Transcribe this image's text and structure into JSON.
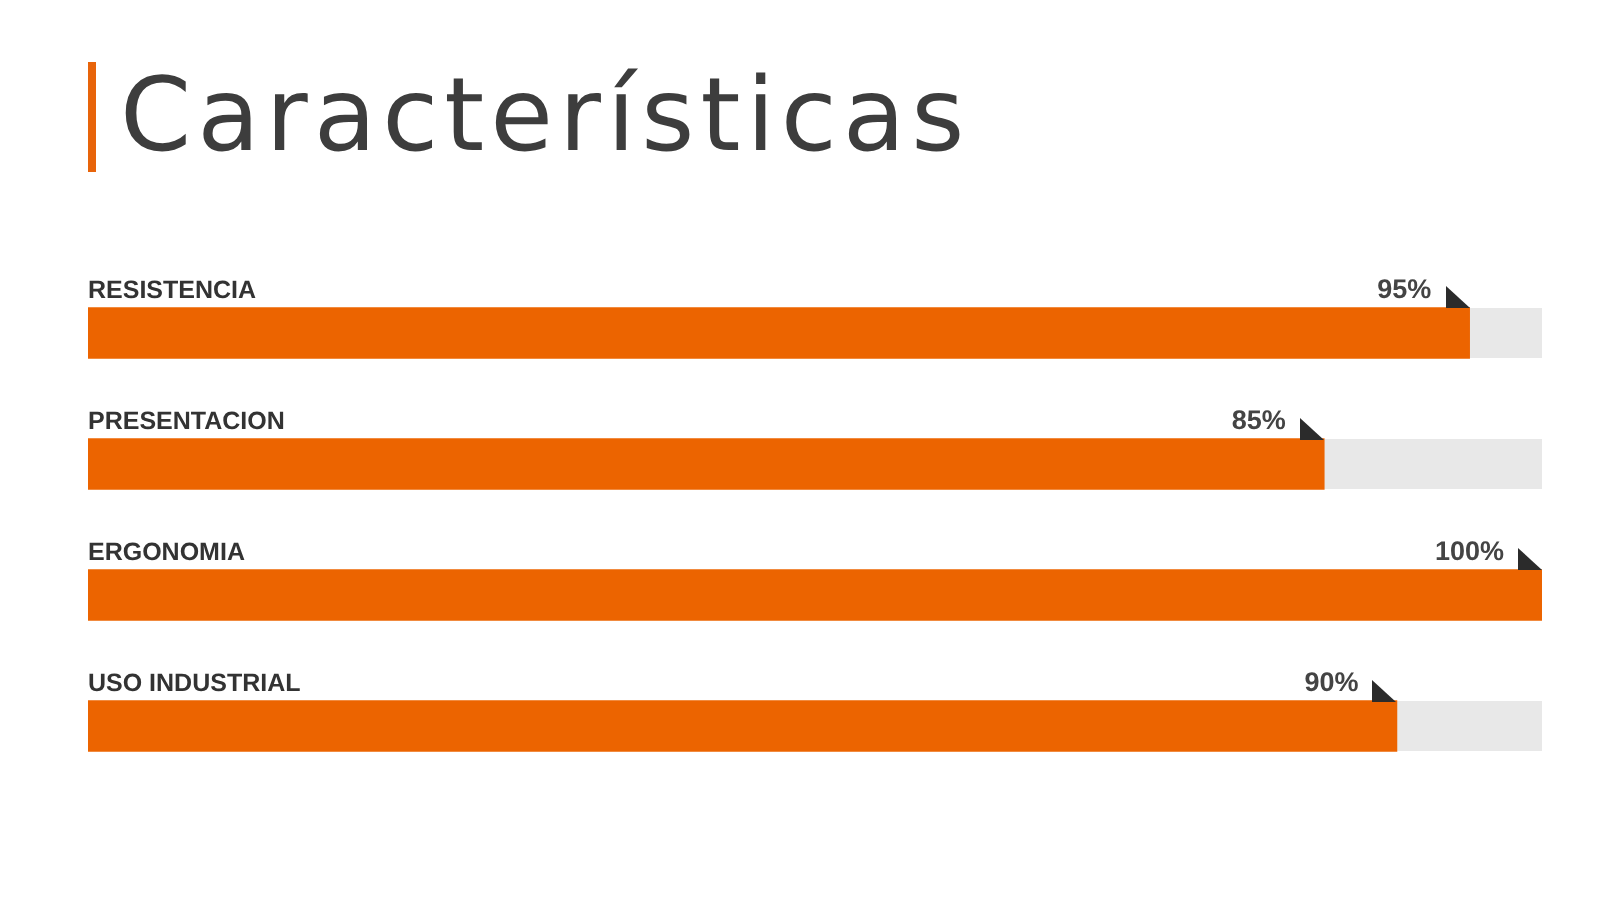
{
  "chart_data": {
    "type": "bar",
    "orientation": "horizontal",
    "title": "Características",
    "categories": [
      "RESISTENCIA",
      "PRESENTACION",
      "ERGONOMIA",
      "USO INDUSTRIAL"
    ],
    "values": [
      95,
      85,
      100,
      90
    ],
    "color": "#ec6400",
    "value_labels": [
      "95%",
      "85%",
      "100%",
      "90%"
    ],
    "xlim": [
      0,
      100
    ],
    "tick_labels": "y"
  }
}
